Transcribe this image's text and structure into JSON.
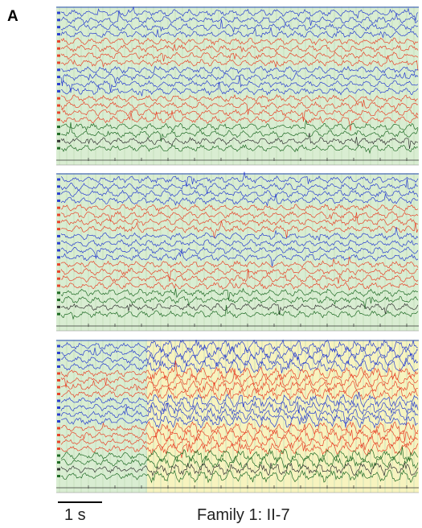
{
  "panel_label": "A",
  "scale_bar": "1 s",
  "caption": "Family 1: II-7"
}
